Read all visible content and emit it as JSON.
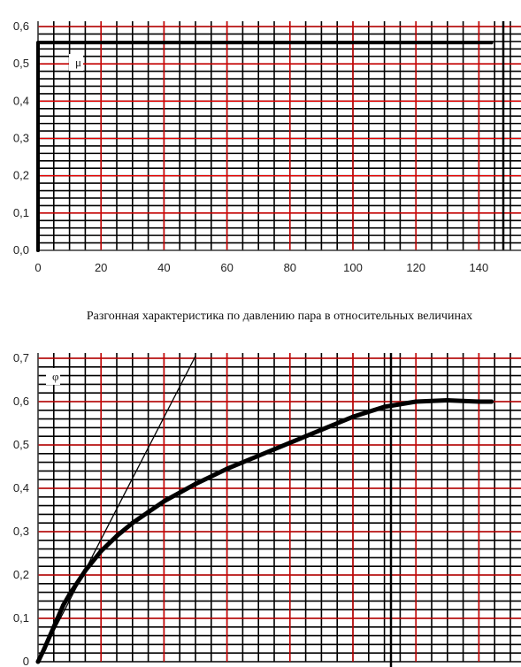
{
  "chart_data": [
    {
      "type": "line",
      "series_label": "μ",
      "xlim": [
        0,
        150
      ],
      "ylim": [
        0,
        0.6
      ],
      "x_ticks": [
        "0",
        "20",
        "40",
        "60",
        "80",
        "100",
        "120",
        "140"
      ],
      "y_ticks": [
        "0,0",
        "0,1",
        "0,2",
        "0,3",
        "0,4",
        "0,5",
        "0,6"
      ],
      "grid": true,
      "series": [
        {
          "x": [
            0,
            0,
            144
          ],
          "y": [
            0,
            0.557,
            0.557
          ]
        }
      ]
    },
    {
      "type": "line",
      "title": "Разгонная характеристика по давлению пара в относительных величинах",
      "series_label": "φ",
      "xlim": [
        0,
        150
      ],
      "ylim": [
        0,
        0.7
      ],
      "y_ticks": [
        "0",
        "0,1",
        "0,2",
        "0,3",
        "0,4",
        "0,5",
        "0,6",
        "0,7"
      ],
      "grid": true,
      "series": [
        {
          "x": [
            0,
            2,
            5,
            8,
            10,
            15,
            20,
            25,
            30,
            35,
            40,
            50,
            60,
            70,
            80,
            90,
            100,
            110,
            120,
            130,
            140,
            144
          ],
          "y": [
            0,
            0.03,
            0.08,
            0.13,
            0.155,
            0.21,
            0.255,
            0.29,
            0.32,
            0.345,
            0.37,
            0.41,
            0.445,
            0.475,
            0.505,
            0.535,
            0.565,
            0.588,
            0.6,
            0.603,
            0.6,
            0.6
          ]
        }
      ],
      "tangent": {
        "x": [
          0,
          50
        ],
        "y": [
          0,
          0.705
        ]
      }
    }
  ]
}
